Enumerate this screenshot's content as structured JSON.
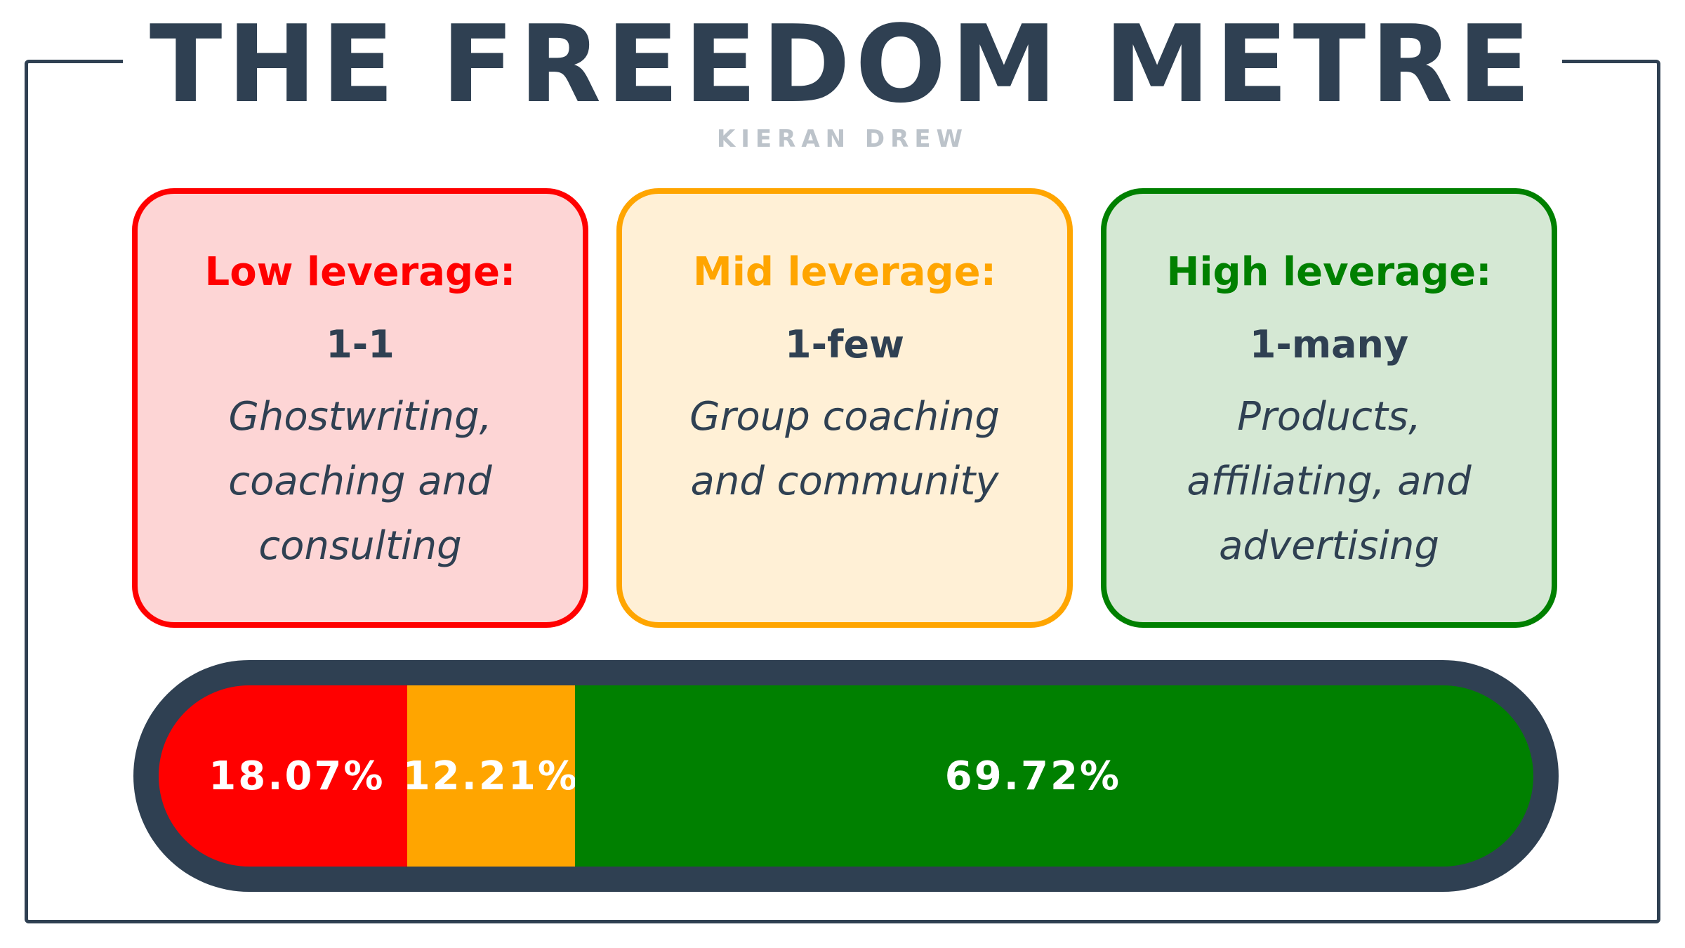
{
  "title": "THE FREEDOM METRE",
  "subtitle": "KIERAN DREW",
  "colors": {
    "low": "#ff0000",
    "mid": "#ffa500",
    "high": "#008000",
    "ink": "#2f4052"
  },
  "cards": [
    {
      "heading": "Low leverage:",
      "ratio": "1-1",
      "description": "Ghostwriting, coaching and consulting"
    },
    {
      "heading": "Mid leverage:",
      "ratio": "1-few",
      "description": "Group coaching and community"
    },
    {
      "heading": "High leverage:",
      "ratio": "1-many",
      "description": "Products, affiliating, and advertising"
    }
  ],
  "meter": {
    "segments": [
      {
        "label": "18.07%",
        "value": 18.07,
        "color": "#ff0000"
      },
      {
        "label": "12.21%",
        "value": 12.21,
        "color": "#ffa500"
      },
      {
        "label": "69.72%",
        "value": 69.72,
        "color": "#008000"
      }
    ]
  }
}
